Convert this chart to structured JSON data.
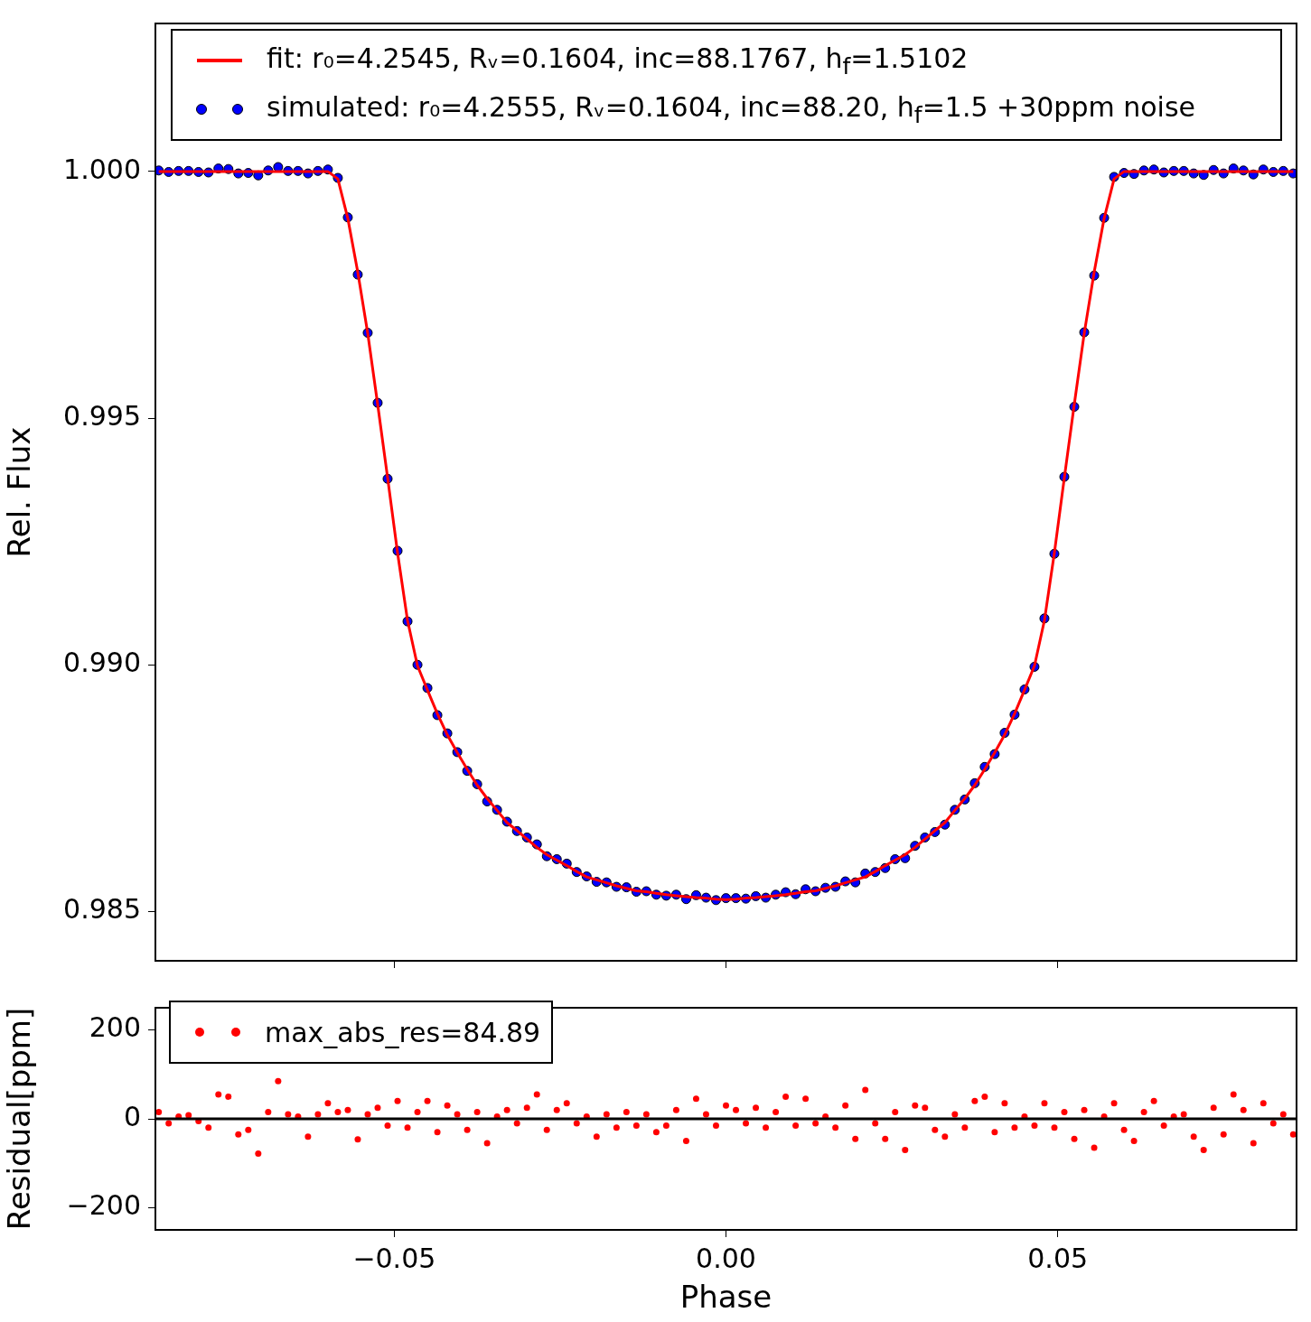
{
  "chart_data": [
    {
      "type": "scatter",
      "ylabel": "Rel. Flux",
      "tick_labels": "y",
      "grid": false,
      "legend": "top",
      "xlim": [
        -0.086,
        0.086
      ],
      "xticks": [
        {
          "value": -0.05,
          "label": null
        },
        {
          "value": 0,
          "label": null
        },
        {
          "value": 0.05,
          "label": null
        }
      ],
      "ylim": [
        0.984,
        1.003
      ],
      "yticks": [
        0.985,
        {
          "value": 0.99,
          "label": "0.990"
        },
        0.995,
        {
          "value": 1,
          "label": "1.000"
        }
      ],
      "x": [
        -0.0855,
        -0.084,
        -0.0825,
        -0.081,
        -0.0795,
        -0.078,
        -0.0765,
        -0.075,
        -0.0735,
        -0.072,
        -0.0705,
        -0.069,
        -0.0675,
        -0.066,
        -0.0645,
        -0.063,
        -0.0615,
        -0.06,
        -0.0585,
        -0.057,
        -0.0555,
        -0.054,
        -0.0525,
        -0.051,
        -0.0495,
        -0.048,
        -0.0465,
        -0.045,
        -0.0435,
        -0.042,
        -0.0405,
        -0.039,
        -0.0375,
        -0.036,
        -0.0345,
        -0.033,
        -0.0315,
        -0.03,
        -0.0285,
        -0.027,
        -0.0255,
        -0.024,
        -0.0225,
        -0.021,
        -0.0195,
        -0.018,
        -0.0165,
        -0.015,
        -0.0135,
        -0.012,
        -0.0105,
        -0.009,
        -0.0075,
        -0.006,
        -0.0045,
        -0.003,
        -0.0015,
        0,
        0.0015,
        0.003,
        0.0045,
        0.006,
        0.0075,
        0.009,
        0.0105,
        0.012,
        0.0135,
        0.015,
        0.0165,
        0.018,
        0.0195,
        0.021,
        0.0225,
        0.024,
        0.0255,
        0.027,
        0.0285,
        0.03,
        0.0315,
        0.033,
        0.0345,
        0.036,
        0.0375,
        0.039,
        0.0405,
        0.042,
        0.0435,
        0.045,
        0.0465,
        0.048,
        0.0495,
        0.051,
        0.0525,
        0.054,
        0.0555,
        0.057,
        0.0585,
        0.06,
        0.0615,
        0.063,
        0.0645,
        0.066,
        0.0675,
        0.069,
        0.0705,
        0.072,
        0.0735,
        0.075,
        0.0765,
        0.078,
        0.0795,
        0.081,
        0.0825,
        0.084,
        0.0855
      ],
      "series": [
        {
          "name": "simulated: r₀=4.2555, Rᵥ=0.1604, inc=88.20, h$_{f}$=1.5 +30ppm noise",
          "marker": "circle",
          "color": "#0000ff",
          "values": [
            1.00002,
            0.99999,
            1.00001,
            1.00001,
            0.99999,
            0.99998,
            1.00006,
            1.00005,
            0.99996,
            0.99997,
            0.99992,
            1.00002,
            1.00009,
            1.00001,
            1.00001,
            0.99996,
            1.00001,
            1.00004,
            0.99987,
            0.99907,
            0.99791,
            0.99673,
            0.99531,
            0.99377,
            0.99231,
            0.99088,
            0.99,
            0.98953,
            0.98898,
            0.98861,
            0.98823,
            0.98785,
            0.98758,
            0.98723,
            0.98706,
            0.98682,
            0.98663,
            0.9865,
            0.98636,
            0.98612,
            0.98606,
            0.98597,
            0.9858,
            0.98571,
            0.9856,
            0.98559,
            0.9855,
            0.98549,
            0.9854,
            0.98541,
            0.98534,
            0.98532,
            0.98534,
            0.98525,
            0.98533,
            0.98528,
            0.98523,
            0.98527,
            0.98527,
            0.98526,
            0.98531,
            0.98528,
            0.98534,
            0.98539,
            0.98535,
            0.98545,
            0.98541,
            0.98548,
            0.9855,
            0.98561,
            0.98559,
            0.98577,
            0.9858,
            0.98588,
            0.98606,
            0.98608,
            0.98633,
            0.9865,
            0.98661,
            0.98676,
            0.98706,
            0.98727,
            0.9876,
            0.98793,
            0.98819,
            0.98862,
            0.98899,
            0.9895,
            0.98996,
            0.99094,
            0.99225,
            0.99381,
            0.99523,
            0.99674,
            0.99789,
            0.99906,
            0.99989,
            0.99997,
            0.99995,
            1.00002,
            1.00004,
            0.99998,
            1.00001,
            1.00001,
            0.99996,
            0.99993,
            1.00003,
            0.99996,
            1.00006,
            1.00002,
            0.99994,
            1.00004,
            0.99999,
            1.00001,
            0.99996
          ]
        },
        {
          "name": "fit: r₀=4.2545, Rᵥ=0.1604, inc=88.1767, h$_{f}$=1.5102",
          "type": "line",
          "marker": "none",
          "line_style": "solid",
          "color": "#ff0000",
          "values": [
            1,
            1,
            1,
            1,
            1,
            1,
            1,
            1,
            1,
            1,
            1,
            1,
            1,
            1,
            1,
            1,
            1,
            1,
            0.99985,
            0.99905,
            0.99796,
            0.99672,
            0.99528,
            0.99379,
            0.99227,
            0.9909,
            0.98998,
            0.98949,
            0.98901,
            0.98858,
            0.98822,
            0.98788,
            0.98756,
            0.98729,
            0.98705,
            0.9868,
            0.98664,
            0.98647,
            0.9863,
            0.98615,
            0.98604,
            0.98593,
            0.98581,
            0.9857,
            0.98564,
            0.98558,
            0.98552,
            0.98547,
            0.98542,
            0.9854,
            0.98537,
            0.98534,
            0.98532,
            0.9853,
            0.98528,
            0.98527,
            0.98525,
            0.98524,
            0.98525,
            0.98527,
            0.98528,
            0.9853,
            0.98532,
            0.98534,
            0.98537,
            0.9854,
            0.98542,
            0.98547,
            0.98552,
            0.98558,
            0.98564,
            0.9857,
            0.98581,
            0.98593,
            0.98604,
            0.98615,
            0.9863,
            0.98647,
            0.98664,
            0.9868,
            0.98705,
            0.98729,
            0.98756,
            0.98788,
            0.98822,
            0.98858,
            0.98901,
            0.98949,
            0.98998,
            0.9909,
            0.99227,
            0.99379,
            0.99528,
            0.99672,
            0.99796,
            0.99905,
            0.99985,
            1,
            1,
            1,
            1,
            1,
            1,
            1,
            1,
            1,
            1,
            1,
            1,
            1,
            1,
            1,
            1,
            1,
            1
          ]
        }
      ]
    },
    {
      "type": "scatter",
      "xlabel": "Phase",
      "ylabel": "Residual[ppm]",
      "grid": false,
      "legend": "top left",
      "marker": "circle",
      "xlim": [
        -0.086,
        0.086
      ],
      "xticks": [
        {
          "value": -0.05,
          "label": "−0.05"
        },
        {
          "value": 0,
          "label": "0.00"
        },
        {
          "value": 0.05,
          "label": "0.05"
        }
      ],
      "ylim": [
        -250,
        250
      ],
      "yticks": [
        {
          "value": -200,
          "label": "−200"
        },
        0,
        200
      ],
      "ref_lines": [
        {
          "axis": "y",
          "value": 0,
          "color": "#000000"
        }
      ],
      "x": [
        -0.0855,
        -0.084,
        -0.0825,
        -0.081,
        -0.0795,
        -0.078,
        -0.0765,
        -0.075,
        -0.0735,
        -0.072,
        -0.0705,
        -0.069,
        -0.0675,
        -0.066,
        -0.0645,
        -0.063,
        -0.0615,
        -0.06,
        -0.0585,
        -0.057,
        -0.0555,
        -0.054,
        -0.0525,
        -0.051,
        -0.0495,
        -0.048,
        -0.0465,
        -0.045,
        -0.0435,
        -0.042,
        -0.0405,
        -0.039,
        -0.0375,
        -0.036,
        -0.0345,
        -0.033,
        -0.0315,
        -0.03,
        -0.0285,
        -0.027,
        -0.0255,
        -0.024,
        -0.0225,
        -0.021,
        -0.0195,
        -0.018,
        -0.0165,
        -0.015,
        -0.0135,
        -0.012,
        -0.0105,
        -0.009,
        -0.0075,
        -0.006,
        -0.0045,
        -0.003,
        -0.0015,
        0,
        0.0015,
        0.003,
        0.0045,
        0.006,
        0.0075,
        0.009,
        0.0105,
        0.012,
        0.0135,
        0.015,
        0.0165,
        0.018,
        0.0195,
        0.021,
        0.0225,
        0.024,
        0.0255,
        0.027,
        0.0285,
        0.03,
        0.0315,
        0.033,
        0.0345,
        0.036,
        0.0375,
        0.039,
        0.0405,
        0.042,
        0.0435,
        0.045,
        0.0465,
        0.048,
        0.0495,
        0.051,
        0.0525,
        0.054,
        0.0555,
        0.057,
        0.0585,
        0.06,
        0.0615,
        0.063,
        0.0645,
        0.066,
        0.0675,
        0.069,
        0.0705,
        0.072,
        0.0735,
        0.075,
        0.0765,
        0.078,
        0.0795,
        0.081,
        0.0825,
        0.084,
        0.0855
      ],
      "series": [
        {
          "name": "max_abs_res=84.89",
          "color": "#ff0000",
          "values": [
            15,
            -10,
            5,
            8,
            -5,
            -20,
            55,
            50,
            -35,
            -25,
            -78,
            15,
            85,
            10,
            5,
            -40,
            10,
            35,
            15,
            20,
            -46,
            10,
            25,
            -15,
            40,
            -20,
            15,
            40,
            -30,
            30,
            10,
            -25,
            15,
            -55,
            5,
            20,
            -10,
            25,
            55,
            -25,
            20,
            35,
            -10,
            5,
            -40,
            10,
            -20,
            15,
            -15,
            10,
            -30,
            -15,
            20,
            -50,
            45,
            10,
            -15,
            30,
            20,
            -10,
            25,
            -20,
            15,
            50,
            -15,
            45,
            -10,
            5,
            -20,
            30,
            -45,
            65,
            -10,
            -45,
            15,
            -70,
            30,
            25,
            -25,
            -40,
            10,
            -20,
            40,
            50,
            -30,
            35,
            -20,
            5,
            -15,
            35,
            -20,
            15,
            -45,
            20,
            -65,
            5,
            35,
            -25,
            -50,
            15,
            40,
            -15,
            5,
            10,
            -40,
            -70,
            25,
            -35,
            55,
            20,
            -55,
            35,
            -10,
            10,
            -35
          ]
        }
      ]
    }
  ]
}
